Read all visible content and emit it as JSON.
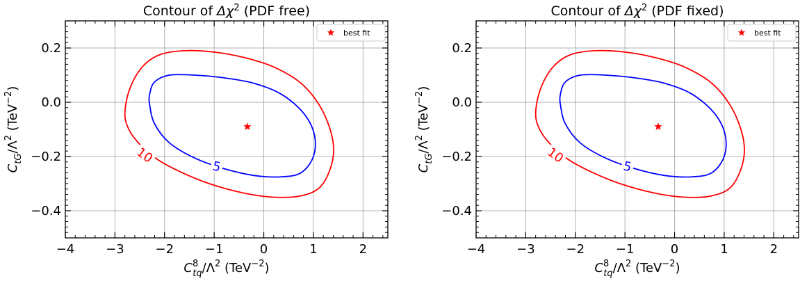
{
  "chart_data": [
    {
      "type": "contour",
      "title_prefix": "Contour of ",
      "title_symbol": "Δχ",
      "title_sup": "2",
      "title_suffix": " (PDF free)",
      "xlabel": {
        "base": "C",
        "sup": "8",
        "sub": "tq",
        "rest": "/Λ",
        "rest_sup": "2",
        "unit": " (TeV",
        "unit_sup": "−2",
        "unit_close": ")"
      },
      "ylabel": {
        "base": "C",
        "sub": "tG",
        "rest": "/Λ",
        "rest_sup": "2",
        "unit": " (TeV",
        "unit_sup": "−2",
        "unit_close": ")"
      },
      "xlim": [
        -4,
        2.5
      ],
      "ylim": [
        -0.5,
        0.3
      ],
      "xticks": [
        -4,
        -3,
        -2,
        -1,
        0,
        1,
        2
      ],
      "xtick_labels": [
        "−4",
        "−3",
        "−2",
        "−1",
        "0",
        "1",
        "2"
      ],
      "yticks": [
        -0.4,
        -0.2,
        0.0,
        0.2
      ],
      "ytick_labels": [
        "−0.4",
        "−0.2",
        "0.0",
        "0.2"
      ],
      "grid": true,
      "legend": {
        "label": "best fit",
        "position": "top-right"
      },
      "best_fit": {
        "x": -0.33,
        "y": -0.09,
        "color": "#ff0000"
      },
      "contours": [
        {
          "level": "10",
          "color": "#ff0000",
          "label_at": {
            "x": -2.4,
            "y": -0.195,
            "angle_deg": 35
          },
          "points": [
            [
              -2.8,
              -0.04
            ],
            [
              -2.7,
              0.05
            ],
            [
              -2.45,
              0.13
            ],
            [
              -2.1,
              0.175
            ],
            [
              -1.6,
              0.19
            ],
            [
              -1.0,
              0.185
            ],
            [
              -0.4,
              0.165
            ],
            [
              0.2,
              0.13
            ],
            [
              0.75,
              0.07
            ],
            [
              1.15,
              -0.02
            ],
            [
              1.38,
              -0.13
            ],
            [
              1.38,
              -0.22
            ],
            [
              1.15,
              -0.31
            ],
            [
              0.75,
              -0.345
            ],
            [
              0.2,
              -0.35
            ],
            [
              -0.4,
              -0.335
            ],
            [
              -1.1,
              -0.3
            ],
            [
              -1.7,
              -0.255
            ],
            [
              -2.15,
              -0.21
            ],
            [
              -2.5,
              -0.155
            ],
            [
              -2.72,
              -0.1
            ],
            [
              -2.8,
              -0.04
            ]
          ]
        },
        {
          "level": "5",
          "color": "#0000ff",
          "label_at": {
            "x": -0.95,
            "y": -0.237,
            "angle_deg": 12
          },
          "points": [
            [
              -2.3,
              -0.01
            ],
            [
              -2.3,
              0.03
            ],
            [
              -2.2,
              0.075
            ],
            [
              -1.9,
              0.1
            ],
            [
              -1.4,
              0.1
            ],
            [
              -0.8,
              0.09
            ],
            [
              -0.2,
              0.07
            ],
            [
              0.35,
              0.03
            ],
            [
              0.8,
              -0.04
            ],
            [
              1.02,
              -0.12
            ],
            [
              1.0,
              -0.2
            ],
            [
              0.75,
              -0.26
            ],
            [
              0.35,
              -0.275
            ],
            [
              -0.2,
              -0.27
            ],
            [
              -0.8,
              -0.245
            ],
            [
              -1.4,
              -0.205
            ],
            [
              -1.9,
              -0.15
            ],
            [
              -2.2,
              -0.08
            ],
            [
              -2.3,
              -0.01
            ]
          ]
        }
      ]
    },
    {
      "type": "contour",
      "title_prefix": "Contour of ",
      "title_symbol": "Δχ",
      "title_sup": "2",
      "title_suffix": " (PDF fixed)",
      "xlabel": {
        "base": "C",
        "sup": "8",
        "sub": "tq",
        "rest": "/Λ",
        "rest_sup": "2",
        "unit": " (TeV",
        "unit_sup": "−2",
        "unit_close": ")"
      },
      "ylabel": {
        "base": "C",
        "sub": "tG",
        "rest": "/Λ",
        "rest_sup": "2",
        "unit": " (TeV",
        "unit_sup": "−2",
        "unit_close": ")"
      },
      "xlim": [
        -4,
        2.5
      ],
      "ylim": [
        -0.5,
        0.3
      ],
      "xticks": [
        -4,
        -3,
        -2,
        -1,
        0,
        1,
        2
      ],
      "xtick_labels": [
        "−4",
        "−3",
        "−2",
        "−1",
        "0",
        "1",
        "2"
      ],
      "yticks": [
        -0.4,
        -0.2,
        0.0,
        0.2
      ],
      "ytick_labels": [
        "−0.4",
        "−0.2",
        "0.0",
        "0.2"
      ],
      "grid": true,
      "legend": {
        "label": "best fit",
        "position": "top-right"
      },
      "best_fit": {
        "x": -0.33,
        "y": -0.09,
        "color": "#ff0000"
      },
      "contours": [
        {
          "level": "10",
          "color": "#ff0000",
          "label_at": {
            "x": -2.4,
            "y": -0.195,
            "angle_deg": 35
          },
          "points": [
            [
              -2.8,
              -0.04
            ],
            [
              -2.7,
              0.05
            ],
            [
              -2.45,
              0.13
            ],
            [
              -2.1,
              0.175
            ],
            [
              -1.6,
              0.19
            ],
            [
              -1.0,
              0.185
            ],
            [
              -0.4,
              0.165
            ],
            [
              0.2,
              0.13
            ],
            [
              0.75,
              0.07
            ],
            [
              1.15,
              -0.02
            ],
            [
              1.38,
              -0.13
            ],
            [
              1.38,
              -0.22
            ],
            [
              1.15,
              -0.31
            ],
            [
              0.75,
              -0.345
            ],
            [
              0.2,
              -0.35
            ],
            [
              -0.4,
              -0.335
            ],
            [
              -1.1,
              -0.3
            ],
            [
              -1.7,
              -0.255
            ],
            [
              -2.15,
              -0.21
            ],
            [
              -2.5,
              -0.155
            ],
            [
              -2.72,
              -0.1
            ],
            [
              -2.8,
              -0.04
            ]
          ]
        },
        {
          "level": "5",
          "color": "#0000ff",
          "label_at": {
            "x": -0.95,
            "y": -0.237,
            "angle_deg": 12
          },
          "points": [
            [
              -2.3,
              -0.01
            ],
            [
              -2.3,
              0.03
            ],
            [
              -2.2,
              0.075
            ],
            [
              -1.9,
              0.1
            ],
            [
              -1.4,
              0.1
            ],
            [
              -0.8,
              0.09
            ],
            [
              -0.2,
              0.07
            ],
            [
              0.35,
              0.03
            ],
            [
              0.8,
              -0.04
            ],
            [
              1.02,
              -0.12
            ],
            [
              1.0,
              -0.2
            ],
            [
              0.75,
              -0.26
            ],
            [
              0.35,
              -0.275
            ],
            [
              -0.2,
              -0.27
            ],
            [
              -0.8,
              -0.245
            ],
            [
              -1.4,
              -0.205
            ],
            [
              -1.9,
              -0.15
            ],
            [
              -2.2,
              -0.08
            ],
            [
              -2.3,
              -0.01
            ]
          ]
        }
      ]
    }
  ]
}
